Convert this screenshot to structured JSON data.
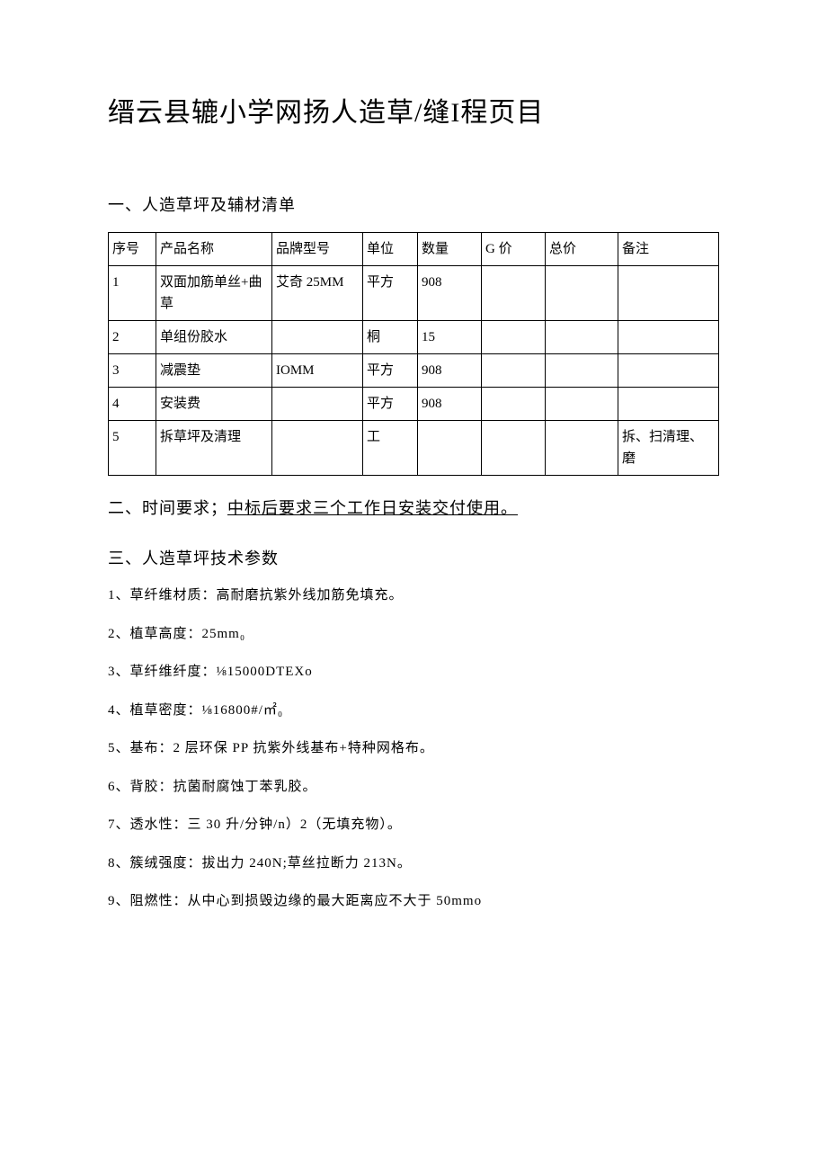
{
  "title": "缙云县辘小学网扬人造草/缝I程页目",
  "section1_head": "一、人造草坪及辅材清单",
  "table": {
    "headers": [
      "序号",
      "产品名称",
      "品牌型号",
      "单位",
      "数量",
      "G 价",
      "总价",
      "备注"
    ],
    "rows": [
      [
        "1",
        "双面加筋单丝+曲草",
        "艾奇 25MM",
        "平方",
        "908",
        "",
        "",
        ""
      ],
      [
        "2",
        "单组份胶水",
        "",
        "桐",
        "15",
        "",
        "",
        ""
      ],
      [
        "3",
        "减震垫",
        "IOMM",
        "平方",
        "908",
        "",
        "",
        ""
      ],
      [
        "4",
        "安装费",
        "",
        "平方",
        "908",
        "",
        "",
        ""
      ],
      [
        "5",
        "拆草坪及清理",
        "",
        "工",
        "",
        "",
        "",
        "拆、扫清理、磨"
      ]
    ]
  },
  "section2_prefix": "二、时间要求；",
  "section2_underlined": "中标后要求三个工作日安装交付使用。",
  "section3_head": "三、人造草坪技术参数",
  "params": [
    "1、草纤维材质：高耐磨抗紫外线加筋免填充。",
    "2、植草高度：25mm₀",
    "3、草纤维纤度：⅛15000DTEXo",
    "4、植草密度：⅛16800#/㎡₀",
    "5、基布：2 层环保 PP 抗紫外线基布+特种网格布。",
    "6、背胶：抗菌耐腐蚀丁苯乳胶。",
    "7、透水性：三 30 升/分钟/n）2（无填充物）。",
    "8、簇绒强度：拔出力 240N;草丝拉断力 213N。",
    "9、阻燃性：从中心到损毁边缘的最大距离应不大于 50mmo"
  ]
}
